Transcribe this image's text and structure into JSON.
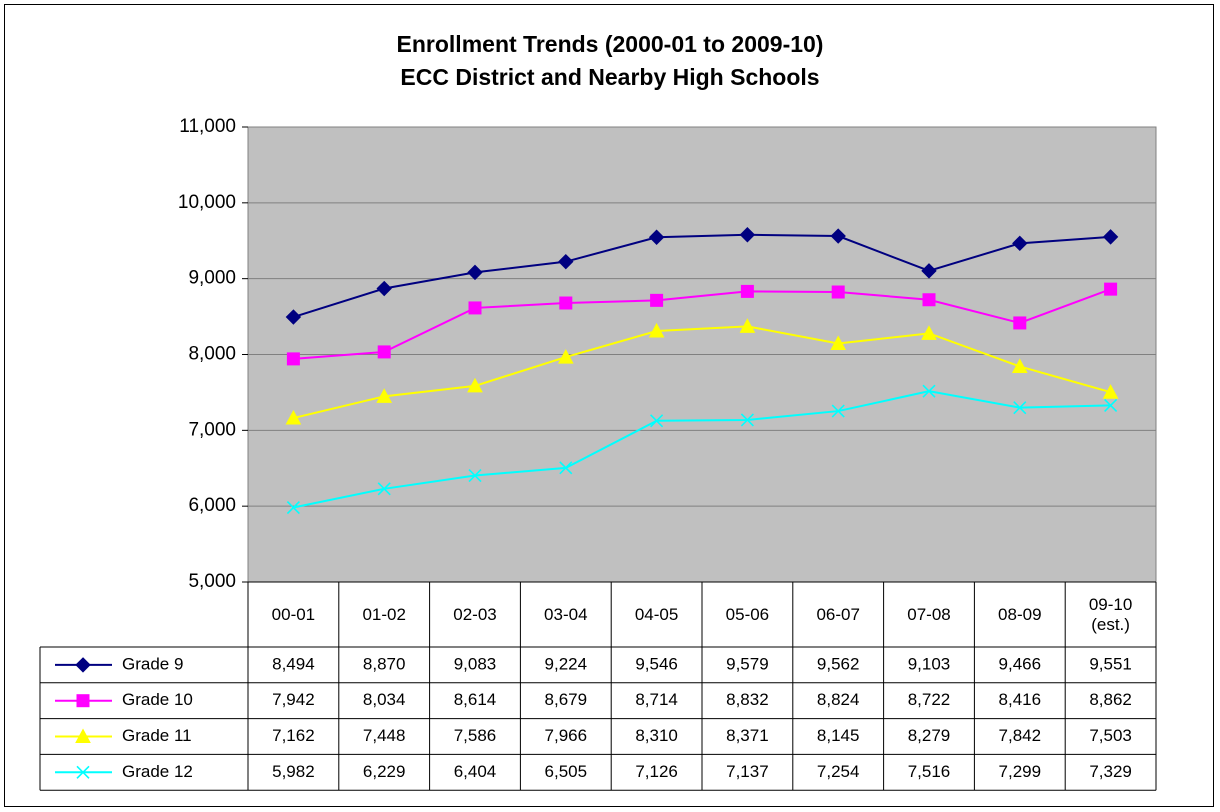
{
  "chart_data": {
    "type": "line",
    "title": "Enrollment Trends (2000-01 to 2009-10)",
    "subtitle": "ECC District and Nearby High Schools",
    "categories": [
      "00-01",
      "01-02",
      "02-03",
      "03-04",
      "04-05",
      "05-06",
      "06-07",
      "07-08",
      "08-09",
      "09-10 (est.)"
    ],
    "series": [
      {
        "name": "Grade 9",
        "color": "#000080",
        "marker": "diamond",
        "values": [
          8494,
          8870,
          9083,
          9224,
          9546,
          9579,
          9562,
          9103,
          9466,
          9551
        ],
        "value_labels": [
          "8,494",
          "8,870",
          "9,083",
          "9,224",
          "9,546",
          "9,579",
          "9,562",
          "9,103",
          "9,466",
          "9,551"
        ]
      },
      {
        "name": "Grade 10",
        "color": "#ff00ff",
        "marker": "square",
        "values": [
          7942,
          8034,
          8614,
          8679,
          8714,
          8832,
          8824,
          8722,
          8416,
          8862
        ],
        "value_labels": [
          "7,942",
          "8,034",
          "8,614",
          "8,679",
          "8,714",
          "8,832",
          "8,824",
          "8,722",
          "8,416",
          "8,862"
        ]
      },
      {
        "name": "Grade 11",
        "color": "#ffff00",
        "marker": "triangle",
        "values": [
          7162,
          7448,
          7586,
          7966,
          8310,
          8371,
          8145,
          8279,
          7842,
          7503
        ],
        "value_labels": [
          "7,162",
          "7,448",
          "7,586",
          "7,966",
          "8,310",
          "8,371",
          "8,145",
          "8,279",
          "7,842",
          "7,503"
        ]
      },
      {
        "name": "Grade 12",
        "color": "#00ffff",
        "marker": "x",
        "values": [
          5982,
          6229,
          6404,
          6505,
          7126,
          7137,
          7254,
          7516,
          7299,
          7329
        ],
        "value_labels": [
          "5,982",
          "6,229",
          "6,404",
          "6,505",
          "7,126",
          "7,137",
          "7,254",
          "7,516",
          "7,299",
          "7,329"
        ]
      }
    ],
    "ylim": [
      5000,
      11000
    ],
    "yticks": [
      {
        "value": 5000,
        "label": "5,000"
      },
      {
        "value": 6000,
        "label": "6,000"
      },
      {
        "value": 7000,
        "label": "7,000"
      },
      {
        "value": 8000,
        "label": "8,000"
      },
      {
        "value": 9000,
        "label": "9,000"
      },
      {
        "value": 10000,
        "label": "10,000"
      },
      {
        "value": 11000,
        "label": "11,000"
      }
    ],
    "grid": true
  }
}
